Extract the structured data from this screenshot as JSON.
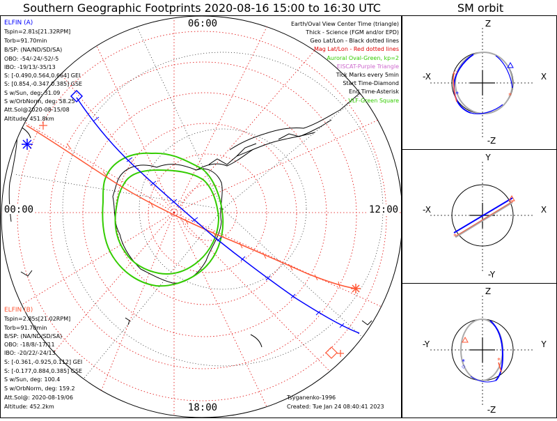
{
  "title": "Southern Geographic Footprints 2020-08-16 15:00 to 16:30 UTC",
  "right_title": "SM orbit",
  "mlt_labels": {
    "top": "06:00",
    "left": "00:00",
    "right": "12:00",
    "bottom": "18:00"
  },
  "legend": [
    {
      "text": "Earth/Oval View Center Time (triangle)",
      "color": "#000000"
    },
    {
      "text": "Thick - Science (FGM and/or EPD)",
      "color": "#000000"
    },
    {
      "text": "Geo Lat/Lon - Black dotted lines",
      "color": "#000000"
    },
    {
      "text": "Mag Lat/Lon - Red dotted lines",
      "color": "#e00000"
    },
    {
      "text": "Auroral Oval-Green, kp=2",
      "color": "#33cc00"
    },
    {
      "text": "EISCAT-Purple Triangle",
      "color": "#cc66cc"
    },
    {
      "text": "Tick Marks every 5min",
      "color": "#000000"
    },
    {
      "text": "Start Time-Diamond",
      "color": "#000000"
    },
    {
      "text": "End Time-Asterisk",
      "color": "#000000"
    },
    {
      "text": "VLF-Green Square",
      "color": "#33cc00"
    }
  ],
  "elfin_a": {
    "title": "ELFIN (A)",
    "color": "#0000ff",
    "lines": [
      "Tspin=2.81s[21.32RPM]",
      "Torb=91.70min",
      "B/SP: (NA/ND/SD/SA)",
      "OBO: -54/-24/-52/-5",
      "IBO: -19/13/-35/13",
      "S: [-0.490,0.564,0.664] GEI",
      "S: [0.854,-0.347,0.385] GSE",
      "S w/Sun, deg: 31.09",
      "S w/OrbNorm, deg: 58.25",
      "Att.Sol@2020-08-15/08",
      "Altitude: 451.8km"
    ]
  },
  "elfin_b": {
    "title": "ELFIN (B)",
    "color": "#ff5533",
    "lines": [
      "Tspin=2.85s[21.02RPM]",
      "Torb=91.70min",
      "B/SP: (NA/ND/SD/SA)",
      "OBO: -18/8/-17/11",
      "IBO: -20/22/-24/13",
      "S: [-0.361,-0.925,0.112] GEI",
      "S: [-0.177,0.884,0.385] GSE",
      "S w/Sun, deg: 100.4",
      "S w/OrbNorm, deg: 159.2",
      "Att.Sol@: 2020-08-19/06",
      "Altitude: 452.2km"
    ]
  },
  "footer": {
    "model": "Tsyganenko-1996",
    "created": "Created: Tue Jan 24 08:40:41 2023"
  },
  "orbit_panels": [
    {
      "top": "Z",
      "bottom": "-Z",
      "left": "-X",
      "right": "X"
    },
    {
      "top": "Y",
      "bottom": "-Y",
      "left": "-X",
      "right": "X"
    },
    {
      "top": "Z",
      "bottom": "-Z",
      "left": "-Y",
      "right": "Y"
    }
  ],
  "colors": {
    "track_a": "#0000ff",
    "track_b": "#ff5533",
    "oval": "#33cc00",
    "mag_grid": "#e00000",
    "geo_grid": "#000000"
  }
}
